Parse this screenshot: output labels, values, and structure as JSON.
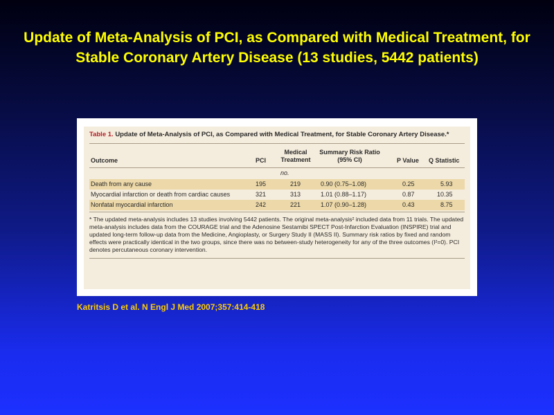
{
  "slide": {
    "title": "Update of Meta-Analysis of PCI, as Compared with Medical Treatment, for Stable Coronary Artery Disease (13 studies, 5442 patients)",
    "citation": "Katritsis D et al. N Engl J Med 2007;357:414-418"
  },
  "table": {
    "number": "Table 1.",
    "caption": "Update of Meta-Analysis of PCI, as Compared with Medical Treatment, for Stable Coronary Artery Disease.*",
    "headers": {
      "outcome": "Outcome",
      "pci": "PCI",
      "medical_line1": "Medical",
      "medical_line2": "Treatment",
      "risk_line1": "Summary Risk Ratio",
      "risk_line2": "(95% CI)",
      "p_value": "P Value",
      "q_statistic": "Q Statistic"
    },
    "units": "no.",
    "rows": [
      {
        "outcome": "Death from any cause",
        "pci": "195",
        "medical": "219",
        "risk_ratio": "0.90 (0.75–1.08)",
        "p_value": "0.25",
        "q_statistic": "5.93"
      },
      {
        "outcome": "Myocardial infarction or death from cardiac causes",
        "pci": "321",
        "medical": "313",
        "risk_ratio": "1.01 (0.88–1.17)",
        "p_value": "0.87",
        "q_statistic": "10.35"
      },
      {
        "outcome": "Nonfatal myocardial infarction",
        "pci": "242",
        "medical": "221",
        "risk_ratio": "1.07 (0.90–1.28)",
        "p_value": "0.43",
        "q_statistic": "8.75"
      }
    ],
    "footnote": "* The updated meta-analysis includes 13 studies involving 5442 patients. The original meta-analysis² included data from 11 trials. The updated meta-analysis includes data from the COURAGE trial and the Adenosine Sestamibi SPECT Post-Infarction Evaluation (INSPIRE) trial and updated long-term follow-up data from the Medicine, Angioplasty, or Surgery Study II (MASS II). Summary risk ratios by fixed and random effects were practically identical in the two groups, since there was no between-study heterogeneity for any of the three outcomes (I²=0). PCI denotes percutaneous coronary intervention."
  },
  "colors": {
    "title_text": "#ffff00",
    "citation_text": "#ffcc00",
    "background_top": "#000010",
    "background_bottom": "#1c30ff",
    "table_paper": "#f4ecdc",
    "table_shaded_row": "#ecd8a8",
    "table_number_red": "#b3202a"
  }
}
